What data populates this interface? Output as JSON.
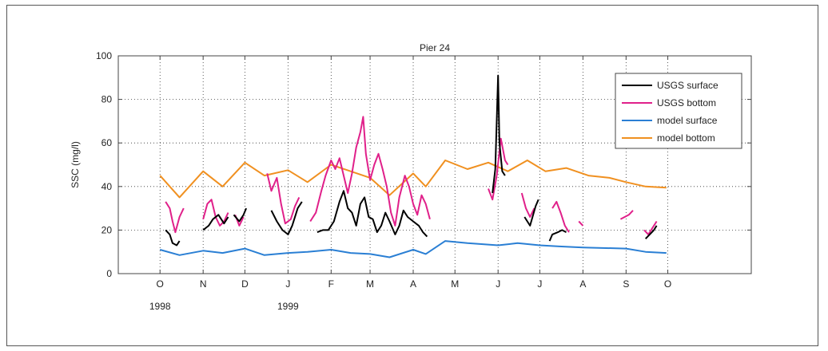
{
  "chart_data": {
    "type": "line",
    "title": "Pier 24",
    "ylabel": "SSC (mg/l)",
    "xlabel": "",
    "ylim": [
      0,
      100
    ],
    "yticks": [
      0,
      20,
      40,
      60,
      80,
      100
    ],
    "xlim": [
      "1998-09-01",
      "1999-11-30"
    ],
    "xticks": [
      {
        "date": "1998-10-01",
        "label": "O"
      },
      {
        "date": "1998-11-01",
        "label": "N"
      },
      {
        "date": "1998-12-01",
        "label": "D"
      },
      {
        "date": "1999-01-01",
        "label": "J"
      },
      {
        "date": "1999-02-01",
        "label": "F"
      },
      {
        "date": "1999-03-01",
        "label": "M"
      },
      {
        "date": "1999-04-01",
        "label": "A"
      },
      {
        "date": "1999-05-01",
        "label": "M"
      },
      {
        "date": "1999-06-01",
        "label": "J"
      },
      {
        "date": "1999-07-01",
        "label": "J"
      },
      {
        "date": "1999-08-01",
        "label": "A"
      },
      {
        "date": "1999-09-01",
        "label": "S"
      },
      {
        "date": "1999-10-01",
        "label": "O"
      }
    ],
    "year_labels": [
      {
        "date": "1998-10-01",
        "label": "1998"
      },
      {
        "date": "1999-01-01",
        "label": "1999"
      }
    ],
    "grid": true,
    "legend_position": "top-right",
    "series": [
      {
        "name": "USGS surface",
        "color": "#000000",
        "segments": [
          [
            [
              "1998-10-05",
              20
            ],
            [
              "1998-10-08",
              18
            ],
            [
              "1998-10-10",
              14
            ],
            [
              "1998-10-13",
              13
            ],
            [
              "1998-10-15",
              15
            ]
          ],
          [
            [
              "1998-11-01",
              20
            ],
            [
              "1998-11-05",
              22
            ],
            [
              "1998-11-08",
              25
            ],
            [
              "1998-11-12",
              27
            ],
            [
              "1998-11-16",
              23
            ],
            [
              "1998-11-19",
              26
            ]
          ],
          [
            [
              "1998-11-23",
              27
            ],
            [
              "1998-11-27",
              24
            ],
            [
              "1998-11-30",
              27
            ],
            [
              "1998-12-02",
              30
            ]
          ],
          [
            [
              "1998-12-20",
              29
            ],
            [
              "1998-12-24",
              24
            ],
            [
              "1998-12-28",
              20
            ],
            [
              "1999-01-01",
              18
            ],
            [
              "1999-01-04",
              22
            ],
            [
              "1999-01-08",
              30
            ],
            [
              "1999-01-11",
              33
            ]
          ],
          [
            [
              "1999-01-22",
              19
            ],
            [
              "1999-01-26",
              20
            ],
            [
              "1999-01-30",
              20
            ],
            [
              "1999-02-03",
              24
            ],
            [
              "1999-02-07",
              33
            ],
            [
              "1999-02-10",
              38
            ],
            [
              "1999-02-13",
              30
            ],
            [
              "1999-02-16",
              28
            ],
            [
              "1999-02-19",
              22
            ],
            [
              "1999-02-22",
              32
            ],
            [
              "1999-02-25",
              35
            ],
            [
              "1999-02-28",
              26
            ],
            [
              "1999-03-03",
              25
            ],
            [
              "1999-03-06",
              19
            ],
            [
              "1999-03-09",
              22
            ],
            [
              "1999-03-12",
              28
            ],
            [
              "1999-03-15",
              24
            ],
            [
              "1999-03-19",
              18
            ],
            [
              "1999-03-22",
              22
            ],
            [
              "1999-03-25",
              29
            ],
            [
              "1999-03-28",
              26
            ],
            [
              "1999-04-01",
              24
            ],
            [
              "1999-04-05",
              22
            ],
            [
              "1999-04-08",
              19
            ],
            [
              "1999-04-11",
              17
            ]
          ],
          [
            [
              "1999-05-28",
              37
            ],
            [
              "1999-05-30",
              48
            ],
            [
              "1999-06-01",
              91
            ],
            [
              "1999-06-02",
              60
            ],
            [
              "1999-06-04",
              47
            ],
            [
              "1999-06-06",
              45
            ]
          ],
          [
            [
              "1999-06-20",
              26
            ],
            [
              "1999-06-24",
              22
            ],
            [
              "1999-06-28",
              31
            ],
            [
              "1999-06-30",
              34
            ]
          ],
          [
            [
              "1999-07-08",
              15
            ],
            [
              "1999-07-10",
              18
            ],
            [
              "1999-07-14",
              19
            ],
            [
              "1999-07-17",
              20
            ],
            [
              "1999-07-20",
              19
            ]
          ],
          [
            [
              "1999-09-15",
              16
            ],
            [
              "1999-09-18",
              18
            ],
            [
              "1999-09-21",
              20
            ],
            [
              "1999-09-23",
              22
            ]
          ]
        ]
      },
      {
        "name": "USGS bottom",
        "color": "#e0208a",
        "segments": [
          [
            [
              "1998-10-05",
              33
            ],
            [
              "1998-10-08",
              30
            ],
            [
              "1998-10-10",
              24
            ],
            [
              "1998-10-12",
              19
            ],
            [
              "1998-10-15",
              26
            ],
            [
              "1998-10-18",
              30
            ]
          ],
          [
            [
              "1998-11-01",
              25
            ],
            [
              "1998-11-04",
              32
            ],
            [
              "1998-11-07",
              34
            ],
            [
              "1998-11-10",
              26
            ],
            [
              "1998-11-13",
              22
            ],
            [
              "1998-11-16",
              24
            ],
            [
              "1998-11-19",
              28
            ]
          ],
          [
            [
              "1998-11-24",
              27
            ],
            [
              "1998-11-27",
              22
            ],
            [
              "1998-11-30",
              26
            ]
          ],
          [
            [
              "1998-12-17",
              46
            ],
            [
              "1998-12-20",
              38
            ],
            [
              "1998-12-24",
              44
            ],
            [
              "1998-12-27",
              32
            ],
            [
              "1998-12-30",
              23
            ],
            [
              "1999-01-03",
              25
            ],
            [
              "1999-01-06",
              31
            ],
            [
              "1999-01-09",
              35
            ]
          ],
          [
            [
              "1999-01-17",
              24
            ],
            [
              "1999-01-21",
              28
            ],
            [
              "1999-01-25",
              38
            ],
            [
              "1999-01-28",
              45
            ],
            [
              "1999-02-01",
              52
            ],
            [
              "1999-02-04",
              48
            ],
            [
              "1999-02-07",
              53
            ],
            [
              "1999-02-10",
              45
            ],
            [
              "1999-02-13",
              37
            ],
            [
              "1999-02-16",
              46
            ],
            [
              "1999-02-19",
              58
            ],
            [
              "1999-02-22",
              65
            ],
            [
              "1999-02-24",
              72
            ],
            [
              "1999-02-26",
              55
            ],
            [
              "1999-03-01",
              43
            ],
            [
              "1999-03-04",
              50
            ],
            [
              "1999-03-07",
              55
            ],
            [
              "1999-03-10",
              48
            ],
            [
              "1999-03-13",
              40
            ],
            [
              "1999-03-16",
              28
            ],
            [
              "1999-03-19",
              22
            ],
            [
              "1999-03-22",
              35
            ],
            [
              "1999-03-26",
              45
            ],
            [
              "1999-03-29",
              40
            ],
            [
              "1999-04-01",
              32
            ],
            [
              "1999-04-04",
              27
            ],
            [
              "1999-04-07",
              36
            ],
            [
              "1999-04-10",
              32
            ],
            [
              "1999-04-13",
              25
            ]
          ],
          [
            [
              "1999-05-25",
              39
            ],
            [
              "1999-05-28",
              34
            ],
            [
              "1999-05-31",
              45
            ],
            [
              "1999-06-03",
              62
            ],
            [
              "1999-06-06",
              52
            ],
            [
              "1999-06-08",
              50
            ]
          ],
          [
            [
              "1999-06-18",
              37
            ],
            [
              "1999-06-21",
              30
            ],
            [
              "1999-06-24",
              26
            ],
            [
              "1999-06-27",
              30
            ]
          ],
          [
            [
              "1999-07-10",
              30
            ],
            [
              "1999-07-13",
              33
            ],
            [
              "1999-07-16",
              28
            ],
            [
              "1999-07-19",
              22
            ],
            [
              "1999-07-22",
              19
            ]
          ],
          [
            [
              "1999-07-29",
              24
            ],
            [
              "1999-08-01",
              22
            ]
          ],
          [
            [
              "1999-08-28",
              25
            ],
            [
              "1999-08-31",
              26
            ],
            [
              "1999-09-03",
              27
            ],
            [
              "1999-09-06",
              29
            ]
          ],
          [
            [
              "1999-09-14",
              20
            ],
            [
              "1999-09-17",
              18
            ],
            [
              "1999-09-20",
              21
            ],
            [
              "1999-09-23",
              24
            ]
          ]
        ]
      },
      {
        "name": "model surface",
        "color": "#2a7fd4",
        "segments": [
          [
            [
              "1998-10-01",
              11
            ],
            [
              "1998-10-15",
              8.5
            ],
            [
              "1998-11-01",
              10.5
            ],
            [
              "1998-11-15",
              9.5
            ],
            [
              "1998-12-01",
              11.5
            ],
            [
              "1998-12-15",
              8.5
            ],
            [
              "1999-01-01",
              9.5
            ],
            [
              "1999-01-15",
              10
            ],
            [
              "1999-02-01",
              11
            ],
            [
              "1999-02-15",
              9.5
            ],
            [
              "1999-03-01",
              9
            ],
            [
              "1999-03-15",
              7.5
            ],
            [
              "1999-04-01",
              11
            ],
            [
              "1999-04-10",
              9
            ],
            [
              "1999-04-24",
              15
            ],
            [
              "1999-05-10",
              14
            ],
            [
              "1999-06-01",
              13
            ],
            [
              "1999-06-15",
              14
            ],
            [
              "1999-07-01",
              13
            ],
            [
              "1999-07-15",
              12.5
            ],
            [
              "1999-08-01",
              12
            ],
            [
              "1999-09-01",
              11.5
            ],
            [
              "1999-09-15",
              10
            ],
            [
              "1999-09-30",
              9.5
            ]
          ]
        ]
      },
      {
        "name": "model bottom",
        "color": "#f09020",
        "segments": [
          [
            [
              "1998-10-01",
              45
            ],
            [
              "1998-10-15",
              35
            ],
            [
              "1998-11-01",
              47
            ],
            [
              "1998-11-15",
              40
            ],
            [
              "1998-12-01",
              51
            ],
            [
              "1998-12-15",
              45
            ],
            [
              "1999-01-01",
              47.5
            ],
            [
              "1999-01-15",
              42
            ],
            [
              "1999-02-01",
              50
            ],
            [
              "1999-02-15",
              47
            ],
            [
              "1999-03-01",
              44
            ],
            [
              "1999-03-15",
              36
            ],
            [
              "1999-04-01",
              46
            ],
            [
              "1999-04-10",
              40
            ],
            [
              "1999-04-24",
              52
            ],
            [
              "1999-05-10",
              48
            ],
            [
              "1999-05-25",
              51
            ],
            [
              "1999-06-08",
              47
            ],
            [
              "1999-06-22",
              52
            ],
            [
              "1999-07-05",
              47
            ],
            [
              "1999-07-20",
              48.5
            ],
            [
              "1999-08-05",
              45
            ],
            [
              "1999-08-20",
              44
            ],
            [
              "1999-09-01",
              42
            ],
            [
              "1999-09-15",
              40
            ],
            [
              "1999-09-30",
              39.5
            ]
          ]
        ]
      }
    ]
  }
}
